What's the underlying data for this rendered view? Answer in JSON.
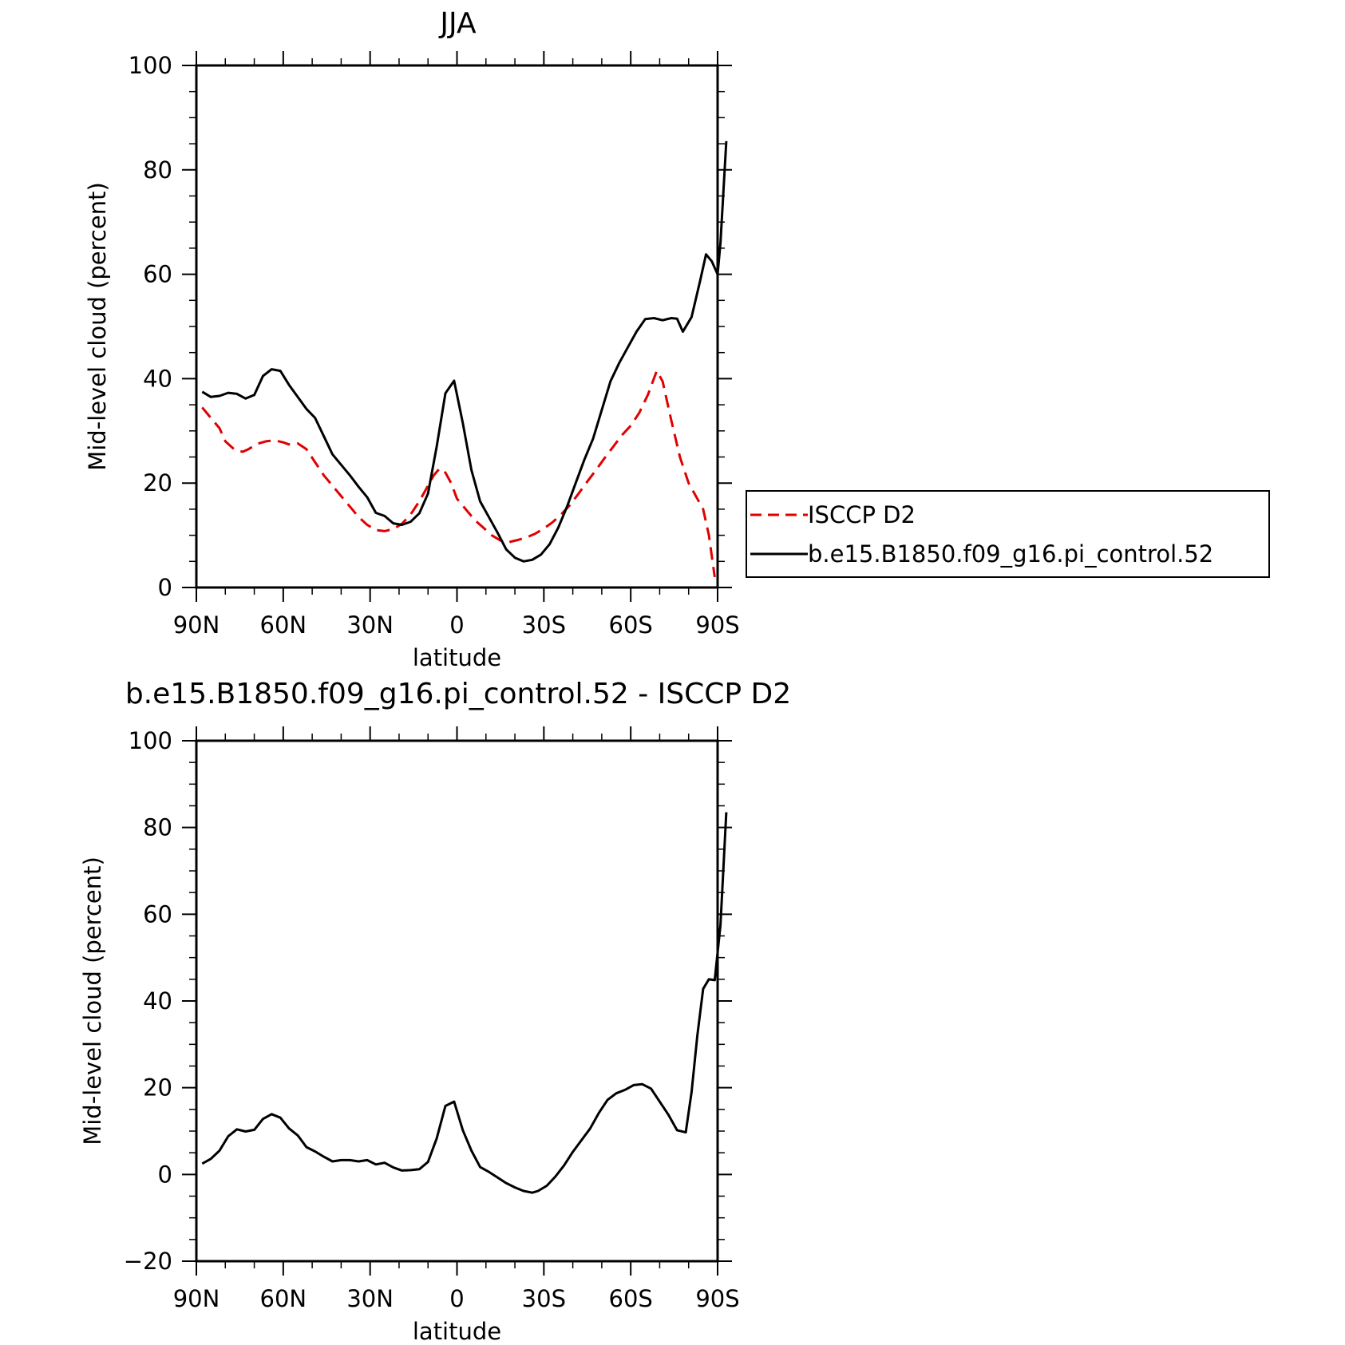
{
  "chart_data": [
    {
      "type": "line",
      "title": "JJA",
      "xlabel": "latitude",
      "ylabel": "Mid-level cloud (percent)",
      "xlim": [
        90,
        -90
      ],
      "ylim": [
        0,
        100
      ],
      "x_tick_values": [
        90,
        60,
        30,
        0,
        -30,
        -60,
        -90
      ],
      "x_tick_labels": [
        "90N",
        "60N",
        "30N",
        "0",
        "30S",
        "60S",
        "90S"
      ],
      "y_ticks": [
        0,
        20,
        40,
        60,
        80,
        100
      ],
      "legend_position": "right",
      "series": [
        {
          "name": "ISCCP D2",
          "color": "#e00000",
          "dash": "dashed",
          "points": [
            [
              88,
              34.5
            ],
            [
              85,
              32.5
            ],
            [
              82,
              30.5
            ],
            [
              80,
              28
            ],
            [
              77,
              26.5
            ],
            [
              74,
              26
            ],
            [
              72,
              26.5
            ],
            [
              69,
              27.5
            ],
            [
              66,
              28
            ],
            [
              63,
              28.2
            ],
            [
              60,
              27.8
            ],
            [
              58,
              27.4
            ],
            [
              55,
              27.6
            ],
            [
              52,
              26.5
            ],
            [
              49,
              24
            ],
            [
              46,
              21.5
            ],
            [
              43,
              19.5
            ],
            [
              40,
              17.5
            ],
            [
              37,
              15.5
            ],
            [
              34,
              13.5
            ],
            [
              31,
              12
            ],
            [
              28,
              11
            ],
            [
              25,
              10.8
            ],
            [
              22,
              11.2
            ],
            [
              19,
              12.2
            ],
            [
              16,
              14
            ],
            [
              13,
              16.5
            ],
            [
              10,
              19.5
            ],
            [
              8,
              21.5
            ],
            [
              6,
              22.8
            ],
            [
              4,
              22
            ],
            [
              2,
              20
            ],
            [
              0,
              17
            ],
            [
              -3,
              15
            ],
            [
              -6,
              13
            ],
            [
              -9,
              11.5
            ],
            [
              -12,
              10
            ],
            [
              -15,
              9
            ],
            [
              -18,
              8.7
            ],
            [
              -21,
              9.1
            ],
            [
              -24,
              9.6
            ],
            [
              -27,
              10.3
            ],
            [
              -30,
              11.3
            ],
            [
              -33,
              12.5
            ],
            [
              -36,
              14
            ],
            [
              -39,
              15.8
            ],
            [
              -42,
              18
            ],
            [
              -45,
              20.3
            ],
            [
              -48,
              22.5
            ],
            [
              -51,
              24.8
            ],
            [
              -54,
              27
            ],
            [
              -57,
              29.2
            ],
            [
              -60,
              31
            ],
            [
              -63,
              33.5
            ],
            [
              -66,
              37
            ],
            [
              -69,
              41.5
            ],
            [
              -71,
              39.5
            ],
            [
              -74,
              32
            ],
            [
              -77,
              25
            ],
            [
              -80,
              20
            ],
            [
              -83,
              17
            ],
            [
              -85,
              15
            ],
            [
              -87,
              10
            ],
            [
              -89,
              2
            ]
          ]
        },
        {
          "name": "b.e15.B1850.f09_g16.pi_control.52",
          "color": "#000000",
          "dash": "solid",
          "points": [
            [
              88,
              37.5
            ],
            [
              85,
              36.5
            ],
            [
              82,
              36.7
            ],
            [
              79,
              37.3
            ],
            [
              76,
              37.1
            ],
            [
              73,
              36.2
            ],
            [
              70,
              36.9
            ],
            [
              67,
              40.5
            ],
            [
              64,
              41.8
            ],
            [
              61,
              41.5
            ],
            [
              58,
              38.8
            ],
            [
              55,
              36.5
            ],
            [
              52,
              34.2
            ],
            [
              49,
              32.5
            ],
            [
              46,
              29
            ],
            [
              43,
              25.5
            ],
            [
              40,
              23.5
            ],
            [
              37,
              21.5
            ],
            [
              34,
              19.3
            ],
            [
              31,
              17.3
            ],
            [
              28,
              14.3
            ],
            [
              25,
              13.7
            ],
            [
              22,
              12.3
            ],
            [
              19,
              12
            ],
            [
              16,
              12.6
            ],
            [
              13,
              14.2
            ],
            [
              10,
              18
            ],
            [
              7,
              27
            ],
            [
              4,
              37.2
            ],
            [
              1,
              39.6
            ],
            [
              -2,
              31.5
            ],
            [
              -5,
              22.5
            ],
            [
              -8,
              16.5
            ],
            [
              -11,
              13.5
            ],
            [
              -14,
              10.5
            ],
            [
              -17,
              7.3
            ],
            [
              -20,
              5.7
            ],
            [
              -23,
              5
            ],
            [
              -26,
              5.3
            ],
            [
              -29,
              6.3
            ],
            [
              -32,
              8.3
            ],
            [
              -35,
              11.5
            ],
            [
              -38,
              15.5
            ],
            [
              -41,
              20
            ],
            [
              -44,
              24.5
            ],
            [
              -47,
              28.5
            ],
            [
              -50,
              34
            ],
            [
              -53,
              39.5
            ],
            [
              -56,
              43
            ],
            [
              -59,
              46
            ],
            [
              -62,
              49
            ],
            [
              -65,
              51.4
            ],
            [
              -68,
              51.6
            ],
            [
              -71,
              51.2
            ],
            [
              -74,
              51.6
            ],
            [
              -76,
              51.5
            ],
            [
              -78,
              49
            ],
            [
              -81,
              51.8
            ],
            [
              -84,
              58.8
            ],
            [
              -86,
              63.8
            ],
            [
              -88,
              62.5
            ],
            [
              -90,
              60
            ],
            [
              -91,
              66
            ],
            [
              -93,
              85.5
            ]
          ]
        }
      ]
    },
    {
      "type": "line",
      "title": "b.e15.B1850.f09_g16.pi_control.52 - ISCCP D2",
      "xlabel": "latitude",
      "ylabel": "Mid-level cloud (percent)",
      "xlim": [
        90,
        -90
      ],
      "ylim": [
        -20,
        100
      ],
      "x_tick_values": [
        90,
        60,
        30,
        0,
        -30,
        -60,
        -90
      ],
      "x_tick_labels": [
        "90N",
        "60N",
        "30N",
        "0",
        "30S",
        "60S",
        "90S"
      ],
      "y_ticks": [
        -20,
        0,
        20,
        40,
        60,
        80,
        100
      ],
      "series": [
        {
          "color": "#000000",
          "dash": "solid",
          "points": [
            [
              88,
              2.5
            ],
            [
              85,
              3.6
            ],
            [
              82,
              5.5
            ],
            [
              79,
              8.8
            ],
            [
              76,
              10.4
            ],
            [
              73,
              9.9
            ],
            [
              70,
              10.3
            ],
            [
              67,
              12.8
            ],
            [
              64,
              13.9
            ],
            [
              61,
              13.1
            ],
            [
              58,
              10.6
            ],
            [
              55,
              9
            ],
            [
              52,
              6.3
            ],
            [
              49,
              5.3
            ],
            [
              46,
              4.1
            ],
            [
              43,
              3
            ],
            [
              40,
              3.3
            ],
            [
              37,
              3.3
            ],
            [
              34,
              3
            ],
            [
              31,
              3.3
            ],
            [
              28,
              2.3
            ],
            [
              25,
              2.7
            ],
            [
              22,
              1.6
            ],
            [
              19,
              0.9
            ],
            [
              16,
              1
            ],
            [
              13,
              1.2
            ],
            [
              10,
              2.9
            ],
            [
              7,
              8.3
            ],
            [
              4,
              15.8
            ],
            [
              1,
              16.8
            ],
            [
              -2,
              10.2
            ],
            [
              -5,
              5.5
            ],
            [
              -8,
              1.7
            ],
            [
              -11,
              0.6
            ],
            [
              -14,
              -0.7
            ],
            [
              -17,
              -2
            ],
            [
              -20,
              -3
            ],
            [
              -23,
              -3.8
            ],
            [
              -26,
              -4.2
            ],
            [
              -28,
              -3.8
            ],
            [
              -31,
              -2.6
            ],
            [
              -34,
              -0.5
            ],
            [
              -37,
              2.1
            ],
            [
              -40,
              5.2
            ],
            [
              -43,
              7.9
            ],
            [
              -46,
              10.6
            ],
            [
              -49,
              14.2
            ],
            [
              -52,
              17.2
            ],
            [
              -55,
              18.7
            ],
            [
              -58,
              19.5
            ],
            [
              -61,
              20.6
            ],
            [
              -64,
              20.8
            ],
            [
              -67,
              19.8
            ],
            [
              -70,
              16.8
            ],
            [
              -73,
              13.8
            ],
            [
              -76,
              10.2
            ],
            [
              -79,
              9.7
            ],
            [
              -81,
              19
            ],
            [
              -83,
              32
            ],
            [
              -85,
              42.8
            ],
            [
              -87,
              45
            ],
            [
              -89,
              44.8
            ],
            [
              -91,
              57.5
            ],
            [
              -93,
              83.5
            ]
          ]
        }
      ]
    }
  ]
}
